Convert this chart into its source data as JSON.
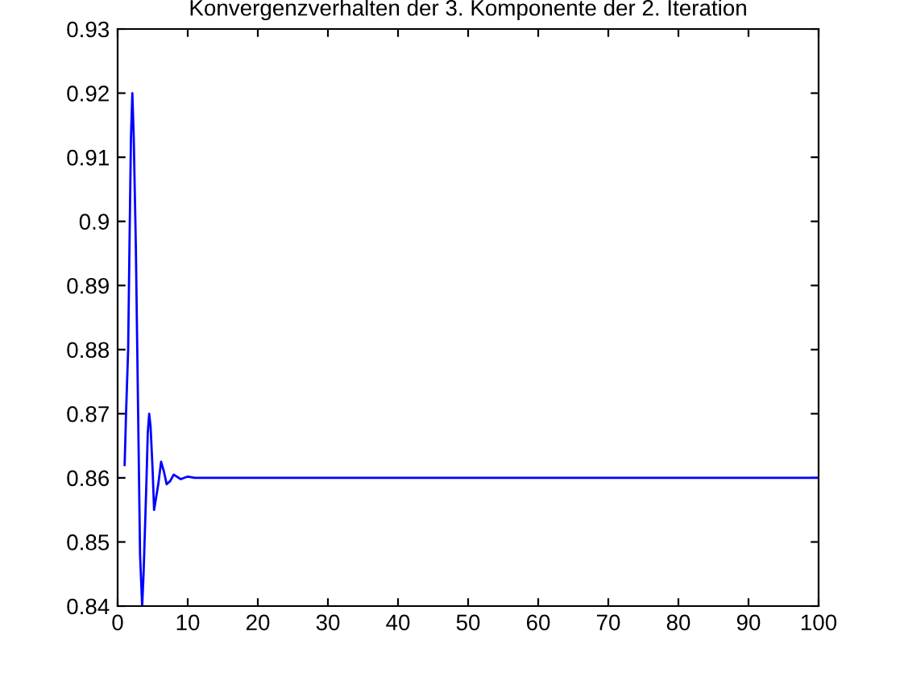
{
  "chart_data": {
    "type": "line",
    "title": "Konvergenzverhalten der 3. Komponente der 2. Iteration",
    "series": [
      {
        "color": "#0000ff",
        "x": [
          1,
          1.2,
          1.5,
          1.7,
          1.9,
          2.1,
          2.3,
          2.6,
          2.8,
          3.0,
          3.2,
          3.5,
          3.7,
          3.9,
          4.1,
          4.3,
          4.5,
          4.7,
          5,
          5.2,
          5.5,
          5.8,
          6.2,
          6.6,
          7,
          7.5,
          8,
          9,
          10,
          11,
          100
        ],
        "values": [
          0.862,
          0.87,
          0.88,
          0.897,
          0.913,
          0.92,
          0.913,
          0.896,
          0.88,
          0.864,
          0.848,
          0.84,
          0.845,
          0.852,
          0.859,
          0.867,
          0.87,
          0.868,
          0.861,
          0.855,
          0.857,
          0.859,
          0.8625,
          0.861,
          0.859,
          0.8595,
          0.8605,
          0.8598,
          0.8602,
          0.86,
          0.86
        ]
      }
    ],
    "xlim": [
      0,
      100
    ],
    "xticks": [
      0,
      10,
      20,
      30,
      40,
      50,
      60,
      70,
      80,
      90,
      100
    ],
    "ylim": [
      0.84,
      0.93
    ],
    "yticks": [
      0.84,
      0.85,
      0.86,
      0.87,
      0.88,
      0.89,
      0.9,
      0.91,
      0.92,
      0.93
    ],
    "grid": false,
    "legend": false,
    "line_style": "solid",
    "marker": "none"
  }
}
